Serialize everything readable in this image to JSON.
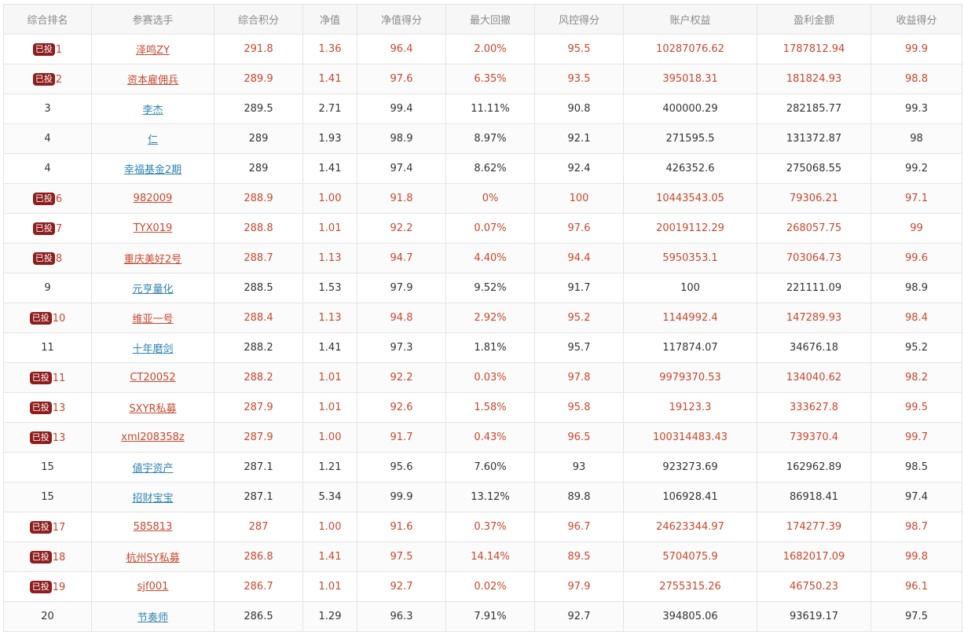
{
  "colors": {
    "invested_text": "#c9482d",
    "normal_link": "#2f84b3",
    "badge_bg": "#8e1d1d"
  },
  "table": {
    "headers": [
      "综合排名",
      "参赛选手",
      "综合积分",
      "净值",
      "净值得分",
      "最大回撤",
      "风控得分",
      "账户权益",
      "盈利金额",
      "收益得分"
    ],
    "badge_label": "已投",
    "rows": [
      {
        "invested": true,
        "rank": "1",
        "name": "泽鸣ZY",
        "score": "291.8",
        "nav": "1.36",
        "nav_score": "96.4",
        "max_dd": "2.00%",
        "risk_score": "95.5",
        "equity": "10287076.62",
        "profit": "1787812.94",
        "return_score": "99.9"
      },
      {
        "invested": true,
        "rank": "2",
        "name": "资本雇佣兵",
        "score": "289.9",
        "nav": "1.41",
        "nav_score": "97.6",
        "max_dd": "6.35%",
        "risk_score": "93.5",
        "equity": "395018.31",
        "profit": "181824.93",
        "return_score": "98.8"
      },
      {
        "invested": false,
        "rank": "3",
        "name": "李杰",
        "score": "289.5",
        "nav": "2.71",
        "nav_score": "99.4",
        "max_dd": "11.11%",
        "risk_score": "90.8",
        "equity": "400000.29",
        "profit": "282185.77",
        "return_score": "99.3"
      },
      {
        "invested": false,
        "rank": "4",
        "name": "仁",
        "score": "289",
        "nav": "1.93",
        "nav_score": "98.9",
        "max_dd": "8.97%",
        "risk_score": "92.1",
        "equity": "271595.5",
        "profit": "131372.87",
        "return_score": "98"
      },
      {
        "invested": false,
        "rank": "4",
        "name": "幸福基金2期",
        "score": "289",
        "nav": "1.41",
        "nav_score": "97.4",
        "max_dd": "8.62%",
        "risk_score": "92.4",
        "equity": "426352.6",
        "profit": "275068.55",
        "return_score": "99.2"
      },
      {
        "invested": true,
        "rank": "6",
        "name": "982009",
        "score": "288.9",
        "nav": "1.00",
        "nav_score": "91.8",
        "max_dd": "0%",
        "risk_score": "100",
        "equity": "10443543.05",
        "profit": "79306.21",
        "return_score": "97.1"
      },
      {
        "invested": true,
        "rank": "7",
        "name": "TYX019",
        "score": "288.8",
        "nav": "1.01",
        "nav_score": "92.2",
        "max_dd": "0.07%",
        "risk_score": "97.6",
        "equity": "20019112.29",
        "profit": "268057.75",
        "return_score": "99"
      },
      {
        "invested": true,
        "rank": "8",
        "name": "重庆美好2号",
        "score": "288.7",
        "nav": "1.13",
        "nav_score": "94.7",
        "max_dd": "4.40%",
        "risk_score": "94.4",
        "equity": "5950353.1",
        "profit": "703064.73",
        "return_score": "99.6"
      },
      {
        "invested": false,
        "rank": "9",
        "name": "元亨量化",
        "score": "288.5",
        "nav": "1.53",
        "nav_score": "97.9",
        "max_dd": "9.52%",
        "risk_score": "91.7",
        "equity": "100",
        "profit": "221111.09",
        "return_score": "98.9"
      },
      {
        "invested": true,
        "rank": "10",
        "name": "维亚一号",
        "score": "288.4",
        "nav": "1.13",
        "nav_score": "94.8",
        "max_dd": "2.92%",
        "risk_score": "95.2",
        "equity": "1144992.4",
        "profit": "147289.93",
        "return_score": "98.4"
      },
      {
        "invested": false,
        "rank": "11",
        "name": "十年磨剑",
        "score": "288.2",
        "nav": "1.41",
        "nav_score": "97.3",
        "max_dd": "1.81%",
        "risk_score": "95.7",
        "equity": "117874.07",
        "profit": "34676.18",
        "return_score": "95.2"
      },
      {
        "invested": true,
        "rank": "11",
        "name": "CT20052",
        "score": "288.2",
        "nav": "1.01",
        "nav_score": "92.2",
        "max_dd": "0.03%",
        "risk_score": "97.8",
        "equity": "9979370.53",
        "profit": "134040.62",
        "return_score": "98.2"
      },
      {
        "invested": true,
        "rank": "13",
        "name": "SXYR私募",
        "score": "287.9",
        "nav": "1.01",
        "nav_score": "92.6",
        "max_dd": "1.58%",
        "risk_score": "95.8",
        "equity": "19123.3",
        "profit": "333627.8",
        "return_score": "99.5"
      },
      {
        "invested": true,
        "rank": "13",
        "name": "xml208358z",
        "score": "287.9",
        "nav": "1.00",
        "nav_score": "91.7",
        "max_dd": "0.43%",
        "risk_score": "96.5",
        "equity": "100314483.43",
        "profit": "739370.4",
        "return_score": "99.7"
      },
      {
        "invested": false,
        "rank": "15",
        "name": "値宇资产",
        "score": "287.1",
        "nav": "1.21",
        "nav_score": "95.6",
        "max_dd": "7.60%",
        "risk_score": "93",
        "equity": "923273.69",
        "profit": "162962.89",
        "return_score": "98.5"
      },
      {
        "invested": false,
        "rank": "15",
        "name": "招财宝宝",
        "score": "287.1",
        "nav": "5.34",
        "nav_score": "99.9",
        "max_dd": "13.12%",
        "risk_score": "89.8",
        "equity": "106928.41",
        "profit": "86918.41",
        "return_score": "97.4"
      },
      {
        "invested": true,
        "rank": "17",
        "name": "585813",
        "score": "287",
        "nav": "1.00",
        "nav_score": "91.6",
        "max_dd": "0.37%",
        "risk_score": "96.7",
        "equity": "24623344.97",
        "profit": "174277.39",
        "return_score": "98.7"
      },
      {
        "invested": true,
        "rank": "18",
        "name": "杭州SY私募",
        "score": "286.8",
        "nav": "1.41",
        "nav_score": "97.5",
        "max_dd": "14.14%",
        "risk_score": "89.5",
        "equity": "5704075.9",
        "profit": "1682017.09",
        "return_score": "99.8"
      },
      {
        "invested": true,
        "rank": "19",
        "name": "sjf001",
        "score": "286.7",
        "nav": "1.01",
        "nav_score": "92.7",
        "max_dd": "0.02%",
        "risk_score": "97.9",
        "equity": "2755315.26",
        "profit": "46750.23",
        "return_score": "96.1"
      },
      {
        "invested": false,
        "rank": "20",
        "name": "节奏师",
        "score": "286.5",
        "nav": "1.29",
        "nav_score": "96.3",
        "max_dd": "7.91%",
        "risk_score": "92.7",
        "equity": "394805.06",
        "profit": "93619.17",
        "return_score": "97.5"
      }
    ]
  }
}
